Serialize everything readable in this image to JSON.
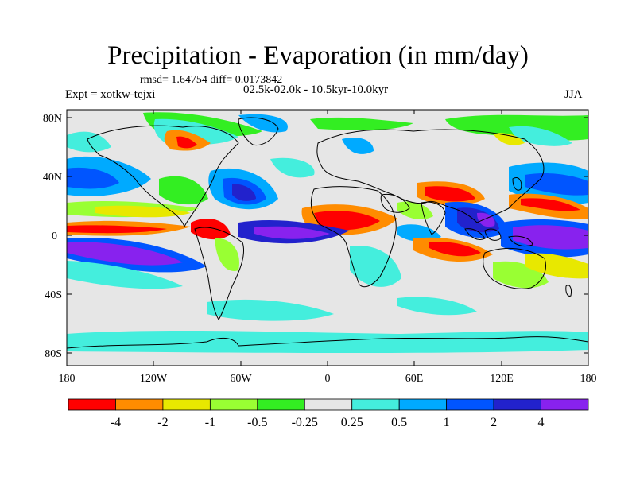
{
  "title": "Precipitation - Evaporation (in mm/day)",
  "stats": "rmsd= 1.64754 diff= 0.0173842",
  "period": "02.5k-02.0k - 10.5kyr-10.0kyr",
  "experiment": "Expt = xotkw-tejxi",
  "season": "JJA",
  "y_axis_labels": [
    "80N",
    "40N",
    "0",
    "40S",
    "80S"
  ],
  "x_axis_labels": [
    "180",
    "120W",
    "60W",
    "0",
    "60E",
    "120E",
    "180"
  ],
  "colorbar": {
    "colors": [
      "#ff0000",
      "#ff8c00",
      "#e8e800",
      "#99ff33",
      "#33ee22",
      "#e6e6e6",
      "#44eedd",
      "#00aaff",
      "#0055ff",
      "#2222cc",
      "#8822ee"
    ],
    "labels": [
      "-4",
      "-2",
      "-1",
      "-0.5",
      "-0.25",
      "0.25",
      "0.5",
      "1",
      "2",
      "4"
    ]
  },
  "map_colors": {
    "background": "#e6e6e6",
    "coast": "#000000"
  }
}
